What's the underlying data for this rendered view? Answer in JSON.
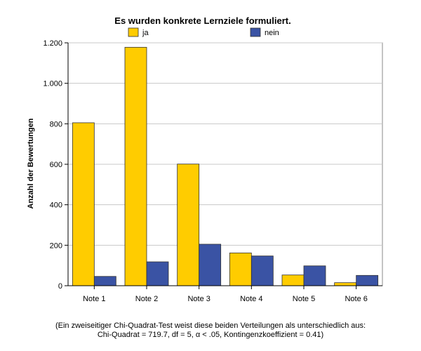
{
  "chart_data": {
    "type": "bar",
    "title": "Es wurden konkrete Lernziele formuliert.",
    "xlabel": "",
    "ylabel": "Anzahl der Bewertungen",
    "categories": [
      "Note 1",
      "Note 2",
      "Note 3",
      "Note 4",
      "Note 5",
      "Note 6"
    ],
    "series": [
      {
        "name": "ja",
        "color": "#FFCC00",
        "values": [
          805,
          1178,
          601,
          162,
          53,
          15
        ]
      },
      {
        "name": "nein",
        "color": "#3A53A4",
        "values": [
          46,
          118,
          205,
          147,
          98,
          51
        ]
      }
    ],
    "ylim": [
      0,
      1200
    ],
    "yticks": [
      0,
      200,
      400,
      600,
      800,
      1000,
      1200
    ],
    "ytick_labels": [
      "0",
      "200",
      "400",
      "600",
      "800",
      "1.000",
      "1.200"
    ],
    "grid": true,
    "legend_position": "top"
  },
  "footnote": {
    "line1": "(Ein zweiseitiger Chi-Quadrat-Test weist diese beiden Verteilungen als unterschiedlich aus:",
    "line2": "Chi-Quadrat = 719.7, df = 5, α < .05, Kontingenzkoeffizient = 0.41)"
  }
}
